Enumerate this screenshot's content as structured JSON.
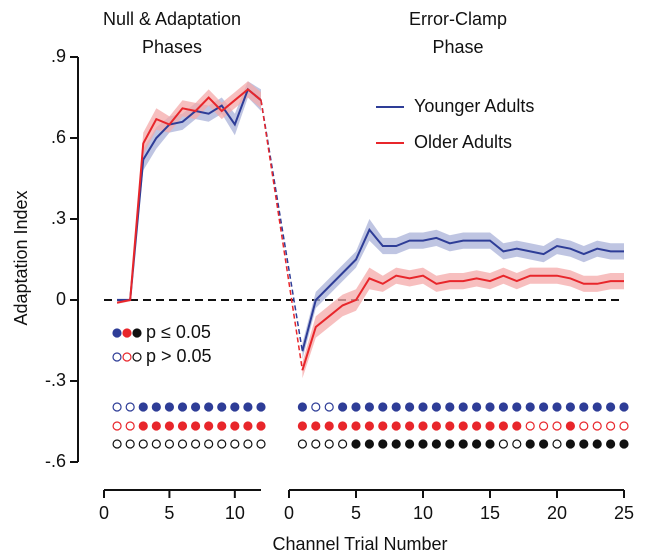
{
  "chart_data": [
    {
      "type": "line",
      "title": [
        "Null & Adaptation",
        "Phases"
      ],
      "xlabel": "Channel Trial Number",
      "ylabel": "Adaptation Index",
      "xlim": [
        0,
        12
      ],
      "xticks": [
        0,
        5,
        10
      ],
      "ylim": [
        -0.6,
        0.9
      ],
      "yticks": [
        {
          "value": -0.6,
          "label": "-.6"
        },
        {
          "value": -0.3,
          "label": "-.3"
        },
        0,
        {
          "value": 0.3,
          "label": ".3"
        },
        {
          "value": 0.6,
          "label": ".6"
        },
        {
          "value": 0.9,
          "label": ".9"
        }
      ],
      "hline": 0,
      "x": [
        1,
        2,
        3,
        4,
        5,
        6,
        7,
        8,
        9,
        10,
        11,
        12
      ],
      "series": [
        {
          "name": "Younger Adults",
          "color": "#2e3d97",
          "band_color": "#a9b1d8",
          "values": [
            0,
            0,
            0.52,
            0.6,
            0.65,
            0.66,
            0.7,
            0.69,
            0.72,
            0.65,
            0.78,
            0.74
          ],
          "se": [
            0.005,
            0.005,
            0.04,
            0.04,
            0.03,
            0.03,
            0.03,
            0.03,
            0.03,
            0.04,
            0.03,
            0.04
          ]
        },
        {
          "name": "Older Adults",
          "color": "#e8262b",
          "band_color": "#f4a9a9",
          "values": [
            -0.01,
            0,
            0.58,
            0.67,
            0.65,
            0.71,
            0.7,
            0.75,
            0.7,
            0.74,
            0.78,
            0.74
          ],
          "se": [
            0.005,
            0.005,
            0.04,
            0.04,
            0.03,
            0.03,
            0.03,
            0.03,
            0.03,
            0.03,
            0.03,
            0.03
          ]
        }
      ],
      "sig_legend": [
        "p ≤ 0.05",
        "p > 0.05"
      ],
      "significance": [
        {
          "color": "#2e3d97",
          "values": [
            false,
            false,
            true,
            true,
            true,
            true,
            true,
            true,
            true,
            true,
            true,
            true
          ]
        },
        {
          "color": "#e8262b",
          "values": [
            false,
            false,
            true,
            true,
            true,
            true,
            true,
            true,
            true,
            true,
            true,
            true
          ]
        },
        {
          "color": "#111111",
          "values": [
            false,
            false,
            false,
            false,
            false,
            false,
            false,
            false,
            false,
            false,
            false,
            false
          ]
        }
      ]
    },
    {
      "type": "line",
      "title": [
        "Error-Clamp",
        "Phase"
      ],
      "xlim": [
        0,
        25
      ],
      "xticks": [
        0,
        5,
        10,
        15,
        20,
        25
      ],
      "legend": "upper right",
      "x": [
        1,
        2,
        3,
        4,
        5,
        6,
        7,
        8,
        9,
        10,
        11,
        12,
        13,
        14,
        15,
        16,
        17,
        18,
        19,
        20,
        21,
        22,
        23,
        24,
        25
      ],
      "series": [
        {
          "name": "Younger Adults",
          "color": "#2e3d97",
          "band_color": "#a9b1d8",
          "values": [
            -0.19,
            0.0,
            0.05,
            0.1,
            0.15,
            0.26,
            0.2,
            0.2,
            0.22,
            0.22,
            0.23,
            0.21,
            0.22,
            0.22,
            0.22,
            0.18,
            0.19,
            0.18,
            0.17,
            0.2,
            0.19,
            0.17,
            0.19,
            0.18,
            0.18
          ],
          "se": [
            0.03,
            0.03,
            0.03,
            0.03,
            0.03,
            0.04,
            0.03,
            0.03,
            0.03,
            0.03,
            0.03,
            0.03,
            0.03,
            0.03,
            0.03,
            0.03,
            0.03,
            0.03,
            0.03,
            0.03,
            0.03,
            0.03,
            0.03,
            0.03,
            0.03
          ]
        },
        {
          "name": "Older Adults",
          "color": "#e8262b",
          "band_color": "#f4a9a9",
          "values": [
            -0.26,
            -0.1,
            -0.06,
            -0.02,
            0.0,
            0.08,
            0.06,
            0.09,
            0.08,
            0.09,
            0.06,
            0.07,
            0.07,
            0.08,
            0.07,
            0.09,
            0.07,
            0.09,
            0.09,
            0.09,
            0.08,
            0.06,
            0.06,
            0.07,
            0.07
          ],
          "se": [
            0.03,
            0.04,
            0.04,
            0.04,
            0.04,
            0.04,
            0.03,
            0.03,
            0.03,
            0.03,
            0.03,
            0.03,
            0.03,
            0.03,
            0.03,
            0.03,
            0.03,
            0.03,
            0.03,
            0.03,
            0.03,
            0.03,
            0.03,
            0.03,
            0.03
          ]
        }
      ],
      "significance": [
        {
          "color": "#2e3d97",
          "values": [
            true,
            false,
            false,
            true,
            true,
            true,
            true,
            true,
            true,
            true,
            true,
            true,
            true,
            true,
            true,
            true,
            true,
            true,
            true,
            true,
            true,
            true,
            true,
            true,
            true
          ]
        },
        {
          "color": "#e8262b",
          "values": [
            true,
            true,
            true,
            true,
            true,
            true,
            true,
            true,
            true,
            true,
            true,
            true,
            true,
            true,
            true,
            true,
            true,
            false,
            false,
            false,
            true,
            false,
            false,
            false,
            false
          ]
        },
        {
          "color": "#111111",
          "values": [
            false,
            false,
            false,
            false,
            true,
            true,
            true,
            true,
            true,
            true,
            true,
            true,
            true,
            true,
            true,
            false,
            false,
            true,
            true,
            false,
            true,
            true,
            true,
            true,
            true
          ]
        }
      ]
    }
  ]
}
